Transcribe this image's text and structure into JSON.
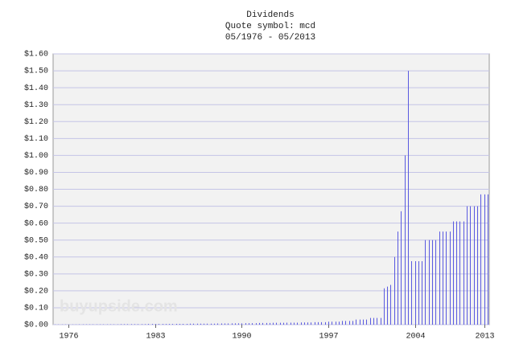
{
  "chart_data": {
    "type": "bar",
    "title": "Dividends",
    "subtitle": "Quote symbol: mcd",
    "date_range": "05/1976 - 05/2013",
    "watermark": "buyupside.com",
    "color": "#5a5ae0",
    "grid": true,
    "ylim": [
      0,
      1.6
    ],
    "yticks": [
      {
        "value": 0,
        "label": "$0.00"
      },
      {
        "value": 0.1,
        "label": "$0.10"
      },
      {
        "value": 0.2,
        "label": "$0.20"
      },
      {
        "value": 0.3,
        "label": "$0.30"
      },
      {
        "value": 0.4,
        "label": "$0.40"
      },
      {
        "value": 0.5,
        "label": "$0.50"
      },
      {
        "value": 0.6,
        "label": "$0.60"
      },
      {
        "value": 0.7,
        "label": "$0.70"
      },
      {
        "value": 0.8,
        "label": "$0.80"
      },
      {
        "value": 0.9,
        "label": "$0.90"
      },
      {
        "value": 1.0,
        "label": "$1.00"
      },
      {
        "value": 1.1,
        "label": "$1.10"
      },
      {
        "value": 1.2,
        "label": "$1.20"
      },
      {
        "value": 1.3,
        "label": "$1.30"
      },
      {
        "value": 1.4,
        "label": "$1.40"
      },
      {
        "value": 1.5,
        "label": "$1.50"
      },
      {
        "value": 1.6,
        "label": "$1.60"
      }
    ],
    "categories": [
      null,
      null,
      null,
      null,
      "1976",
      null,
      null,
      null,
      null,
      null,
      null,
      null,
      null,
      null,
      null,
      null,
      null,
      null,
      null,
      null,
      null,
      null,
      null,
      null,
      null,
      null,
      null,
      null,
      null,
      "1983",
      null,
      null,
      null,
      null,
      null,
      null,
      null,
      null,
      null,
      null,
      null,
      null,
      null,
      null,
      null,
      null,
      null,
      null,
      null,
      null,
      null,
      null,
      null,
      null,
      "1990",
      null,
      null,
      null,
      null,
      null,
      null,
      null,
      null,
      null,
      null,
      null,
      null,
      null,
      null,
      null,
      null,
      null,
      null,
      null,
      null,
      null,
      null,
      null,
      null,
      "1997",
      null,
      null,
      null,
      null,
      null,
      null,
      null,
      null,
      null,
      null,
      null,
      null,
      null,
      null,
      null,
      null,
      null,
      null,
      null,
      null,
      null,
      null,
      null,
      null,
      "2004",
      null,
      null,
      null,
      null,
      null,
      null,
      null,
      null,
      null,
      null,
      null,
      null,
      null,
      null,
      null,
      null,
      null,
      null,
      null,
      "2013",
      null
    ],
    "values": [
      0.001,
      0.001,
      0.001,
      0.001,
      0.001,
      0.001,
      0.001,
      0.002,
      0.002,
      0.002,
      0.002,
      0.002,
      0.002,
      0.002,
      0.002,
      0.002,
      0.002,
      0.002,
      0.002,
      0.003,
      0.003,
      0.003,
      0.003,
      0.003,
      0.003,
      0.003,
      0.003,
      0.004,
      0.004,
      0.004,
      0.004,
      0.004,
      0.004,
      0.004,
      0.004,
      0.005,
      0.005,
      0.005,
      0.005,
      0.006,
      0.006,
      0.006,
      0.006,
      0.006,
      0.006,
      0.006,
      0.006,
      0.007,
      0.007,
      0.007,
      0.007,
      0.008,
      0.008,
      0.008,
      0.008,
      0.009,
      0.009,
      0.009,
      0.009,
      0.01,
      0.01,
      0.01,
      0.01,
      0.011,
      0.011,
      0.011,
      0.011,
      0.012,
      0.012,
      0.012,
      0.012,
      0.013,
      0.013,
      0.013,
      0.013,
      0.015,
      0.015,
      0.015,
      0.015,
      0.018,
      0.018,
      0.018,
      0.018,
      0.022,
      0.022,
      0.022,
      0.022,
      0.03,
      0.03,
      0.03,
      0.03,
      0.04,
      0.04,
      0.04,
      0.04,
      0.215,
      0.225,
      0.235,
      0.4,
      0.55,
      0.67,
      1.0,
      1.5,
      0.375,
      0.375,
      0.375,
      0.375,
      0.5,
      0.5,
      0.5,
      0.5,
      0.55,
      0.55,
      0.55,
      0.55,
      0.61,
      0.61,
      0.61,
      0.61,
      0.7,
      0.7,
      0.7,
      0.7,
      0.77,
      0.77,
      0.77
    ]
  }
}
